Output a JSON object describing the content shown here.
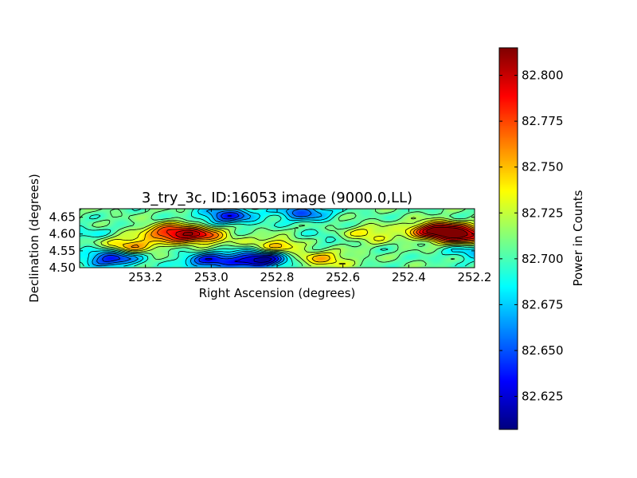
{
  "chart_data": {
    "type": "heatmap",
    "title": "3_try_3c, ID:16053 image (9000.0,LL)",
    "xlabel": "Right Ascension (degrees)",
    "ylabel": "Declination (degrees)",
    "xlim": [
      253.4,
      252.2
    ],
    "ylim": [
      4.5,
      4.675
    ],
    "x_ticks": [
      "253.2",
      "253.0",
      "252.8",
      "252.6",
      "252.4",
      "252.2"
    ],
    "x_tick_values": [
      253.2,
      253.0,
      252.8,
      252.6,
      252.4,
      252.2
    ],
    "y_ticks": [
      "4.50",
      "4.55",
      "4.60",
      "4.65"
    ],
    "y_tick_values": [
      4.5,
      4.55,
      4.6,
      4.65
    ],
    "colorbar": {
      "label": "Power in Counts",
      "range": [
        82.607,
        82.815
      ],
      "ticks": [
        "82.625",
        "82.650",
        "82.675",
        "82.700",
        "82.725",
        "82.750",
        "82.775",
        "82.800"
      ],
      "tick_values": [
        82.625,
        82.65,
        82.675,
        82.7,
        82.725,
        82.75,
        82.775,
        82.8
      ],
      "colormap": "jet"
    },
    "contours": true,
    "features": [
      {
        "ra": 252.31,
        "dec": 4.61,
        "value": 82.812
      },
      {
        "ra": 252.22,
        "dec": 4.595,
        "value": 82.79
      },
      {
        "ra": 253.12,
        "dec": 4.605,
        "value": 82.783
      },
      {
        "ra": 253.03,
        "dec": 4.595,
        "value": 82.77
      },
      {
        "ra": 253.25,
        "dec": 4.565,
        "value": 82.762
      },
      {
        "ra": 252.8,
        "dec": 4.565,
        "value": 82.752
      },
      {
        "ra": 252.66,
        "dec": 4.525,
        "value": 82.748
      },
      {
        "ra": 252.52,
        "dec": 4.6,
        "value": 82.738
      },
      {
        "ra": 252.67,
        "dec": 4.585,
        "value": 82.692
      },
      {
        "ra": 252.95,
        "dec": 4.655,
        "value": 82.64
      },
      {
        "ra": 252.85,
        "dec": 4.525,
        "value": 82.61
      },
      {
        "ra": 253.3,
        "dec": 4.53,
        "value": 82.63
      },
      {
        "ra": 253.0,
        "dec": 4.52,
        "value": 82.638
      },
      {
        "ra": 252.72,
        "dec": 4.665,
        "value": 82.65
      },
      {
        "ra": 252.2,
        "dec": 4.55,
        "value": 82.67
      },
      {
        "ra": 253.38,
        "dec": 4.6,
        "value": 82.69
      }
    ]
  }
}
